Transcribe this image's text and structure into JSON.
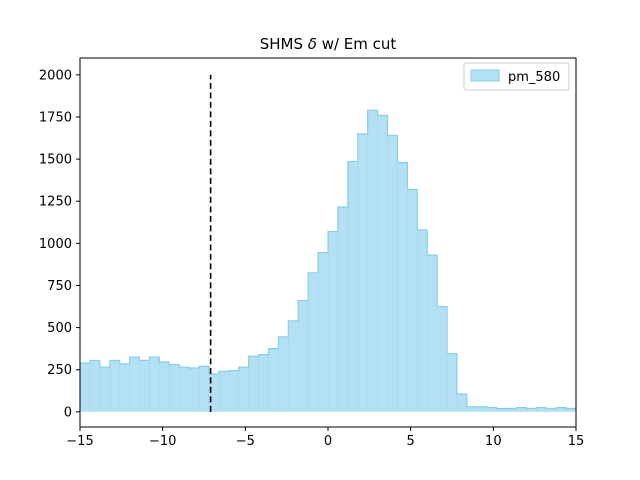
{
  "chart_data": {
    "type": "area",
    "title_prefix": "SHMS ",
    "title_symbol": "δ",
    "title_suffix": " w/ Em cut",
    "xlabel": "",
    "ylabel": "",
    "xlim": [
      -15,
      15
    ],
    "ylim": [
      -90,
      2100
    ],
    "xticks": [
      -15,
      -10,
      -5,
      0,
      5,
      10,
      15
    ],
    "xtick_labels": [
      "−15",
      "−10",
      "−5",
      "0",
      "5",
      "10",
      "15"
    ],
    "yticks": [
      0,
      250,
      500,
      750,
      1000,
      1250,
      1500,
      1750,
      2000
    ],
    "ytick_labels": [
      "0",
      "250",
      "500",
      "750",
      "1000",
      "1250",
      "1500",
      "1750",
      "2000"
    ],
    "grid": false,
    "legend_position": "top-right",
    "series": [
      {
        "name": "pm_580",
        "fill_color": "#87ceeb",
        "fill_opacity": 0.63,
        "edge_color": "#87ceeb",
        "bin_edges": [
          -15,
          -14.4,
          -13.8,
          -13.2,
          -12.6,
          -12,
          -11.4,
          -10.8,
          -10.2,
          -9.6,
          -9,
          -8.4,
          -7.8,
          -7.2,
          -6.6,
          -6,
          -5.4,
          -4.8,
          -4.2,
          -3.6,
          -3,
          -2.4,
          -1.8,
          -1.2,
          -0.6,
          0,
          0.6,
          1.2,
          1.8,
          2.4,
          3,
          3.6,
          4.2,
          4.8,
          5.4,
          6,
          6.6,
          7.2,
          7.8,
          8.4,
          9,
          9.6,
          10.2,
          10.8,
          11.4,
          12,
          12.6,
          13.2,
          13.8,
          14.4,
          15
        ],
        "counts": [
          290,
          305,
          265,
          305,
          285,
          325,
          305,
          325,
          295,
          280,
          265,
          260,
          270,
          225,
          240,
          245,
          265,
          330,
          340,
          375,
          445,
          540,
          660,
          825,
          945,
          1070,
          1215,
          1485,
          1650,
          1790,
          1760,
          1640,
          1480,
          1320,
          1080,
          930,
          625,
          345,
          105,
          30,
          30,
          25,
          20,
          20,
          25,
          20,
          25,
          20,
          25,
          20
        ]
      }
    ],
    "vlines": [
      {
        "x": -7.1,
        "ymin": 0,
        "ymax": 2000,
        "style": "dashed",
        "color": "#000000"
      }
    ]
  }
}
